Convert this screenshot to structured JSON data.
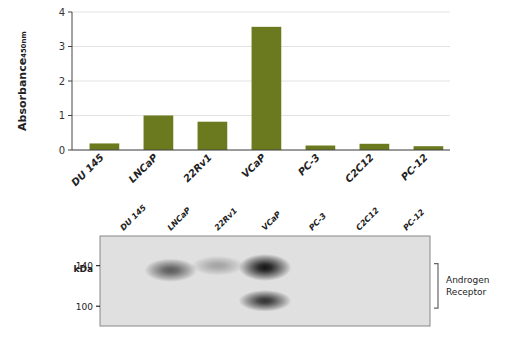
{
  "chart_data": [
    {
      "type": "bar",
      "categories": [
        "DU 145",
        "LNCaP",
        "22Rv1",
        "VCaP",
        "PC-3",
        "C2C12",
        "PC-12"
      ],
      "values": [
        0.19,
        1.0,
        0.82,
        3.57,
        0.13,
        0.18,
        0.11
      ],
      "color": "#6b7a1e",
      "y_label": "Absorbance₄₅₀ₙₘ",
      "ylim": [
        0,
        4.0
      ],
      "yticks": [
        0,
        1,
        2,
        3,
        4
      ],
      "grid": true
    },
    {
      "type": "blot",
      "categories": [
        "DU 145",
        "LNCaP",
        "22Rv1",
        "VCaP",
        "PC-3",
        "C2C12",
        "PC-12"
      ],
      "bands": [
        {
          "lane": 1,
          "y_frac": 0.38,
          "intensity": 0.65,
          "h_frac": 0.13
        },
        {
          "lane": 2,
          "y_frac": 0.33,
          "intensity": 0.3,
          "h_frac": 0.11
        },
        {
          "lane": 3,
          "y_frac": 0.35,
          "intensity": 1.0,
          "h_frac": 0.15
        },
        {
          "lane": 3,
          "y_frac": 0.72,
          "intensity": 0.85,
          "h_frac": 0.12
        }
      ],
      "markers": [
        140,
        100
      ],
      "marker_label": "kDa",
      "label": "Androgen\nReceptor"
    }
  ]
}
